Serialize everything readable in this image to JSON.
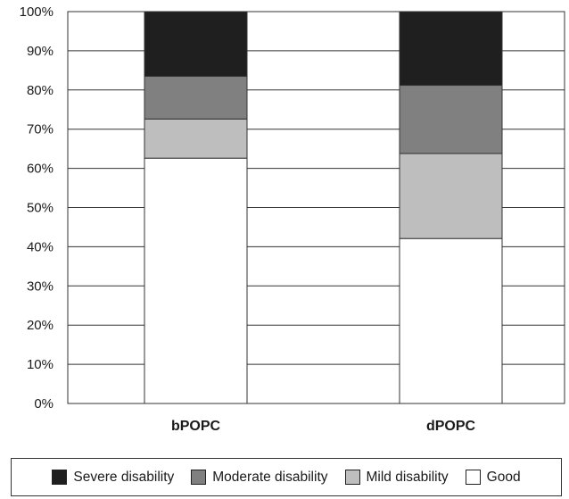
{
  "chart_data": {
    "type": "bar",
    "stacked": true,
    "categories": [
      "bPOPC",
      "dPOPC"
    ],
    "series": [
      {
        "name": "Good",
        "color": "#ffffff",
        "values": [
          62.6,
          42.1
        ]
      },
      {
        "name": "Mild disability",
        "color": "#bebebe",
        "values": [
          10.0,
          21.7
        ]
      },
      {
        "name": "Moderate disability",
        "color": "#808080",
        "values": [
          10.9,
          17.4
        ]
      },
      {
        "name": "Severe disability",
        "color": "#1f1f1f",
        "values": [
          16.5,
          18.8
        ]
      }
    ],
    "y_ticks": [
      "0%",
      "10%",
      "20%",
      "30%",
      "40%",
      "50%",
      "60%",
      "70%",
      "80%",
      "90%",
      "100%"
    ],
    "ylim": [
      0,
      100
    ],
    "grid": true,
    "legend_position": "bottom",
    "legend_order": [
      "Severe disability",
      "Moderate disability",
      "Mild disability",
      "Good"
    ]
  }
}
